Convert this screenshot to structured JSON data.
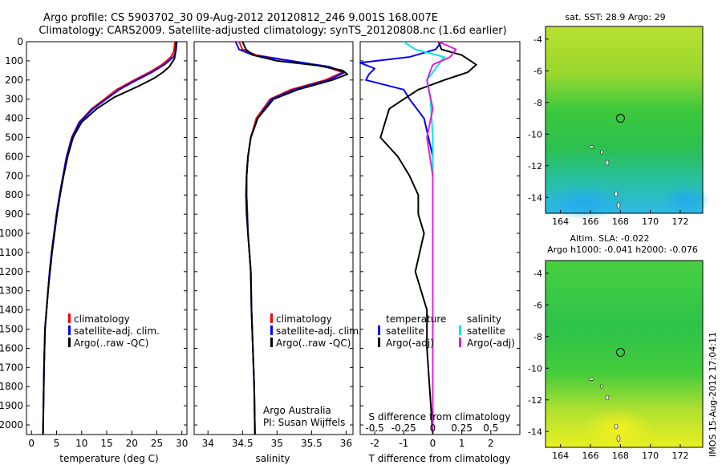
{
  "header": {
    "line1": "Argo profile: CS 5903702_30 09-Aug-2012 20120812_246 9.001S 168.007E",
    "line2": "Climatology: CARS2009. Satellite-adjusted climatology: synTS_20120808.nc (1.6d earlier)"
  },
  "colors": {
    "climatology": "#ff0000",
    "satellite": "#0000ff",
    "argo": "#000000",
    "satellite_salinity": "#00e5e5",
    "argo_salinity": "#e020e0"
  },
  "depth_ticks": [
    "0",
    "100",
    "200",
    "300",
    "400",
    "500",
    "600",
    "700",
    "800",
    "900",
    "1000",
    "1100",
    "1200",
    "1300",
    "1400",
    "1500",
    "1600",
    "1700",
    "1800",
    "1900",
    "2000"
  ],
  "chart_data": [
    {
      "type": "line",
      "id": "temperature",
      "xlabel": "temperature (deg C)",
      "xlim": [
        -1,
        31
      ],
      "ylim": [
        2050,
        0
      ],
      "xticks": [
        "0",
        "5",
        "10",
        "15",
        "20",
        "25",
        "30"
      ],
      "xtick_values": [
        0,
        5,
        10,
        15,
        20,
        25,
        30
      ],
      "legend": [
        "climatology",
        "satellite-adj. clim.",
        "Argo(..raw -QC)"
      ],
      "series": [
        {
          "name": "climatology",
          "x": [
            28.6,
            28.4,
            27.8,
            26.0,
            23.5,
            20.5,
            17.0,
            12.0,
            9.5,
            8.0,
            7.0,
            6.3,
            5.6,
            5.0,
            4.5,
            4.0,
            3.6,
            3.3,
            3.0,
            2.7,
            2.5,
            2.3
          ],
          "y": [
            0,
            50,
            80,
            120,
            160,
            200,
            250,
            350,
            420,
            500,
            600,
            700,
            800,
            900,
            1000,
            1100,
            1200,
            1300,
            1400,
            1500,
            1700,
            2050
          ]
        },
        {
          "name": "satellite-adj. clim.",
          "x": [
            29.0,
            28.8,
            28.3,
            26.5,
            24.0,
            21.0,
            17.5,
            12.3,
            9.6,
            8.1,
            7.0,
            6.3,
            5.6,
            5.0,
            4.5,
            4.0,
            3.6,
            3.3,
            3.0,
            2.7,
            2.5,
            2.3
          ],
          "y": [
            0,
            50,
            80,
            120,
            160,
            200,
            250,
            350,
            420,
            500,
            600,
            700,
            800,
            900,
            1000,
            1100,
            1200,
            1300,
            1400,
            1500,
            1700,
            2050
          ]
        },
        {
          "name": "Argo(..raw -QC)",
          "x": [
            28.8,
            28.7,
            28.5,
            27.5,
            26.2,
            24.5,
            21.5,
            16.5,
            13.0,
            10.0,
            8.3,
            7.2,
            6.4,
            5.7,
            5.1,
            4.6,
            4.1,
            3.7,
            3.3,
            3.0,
            2.7,
            2.5,
            2.3
          ],
          "y": [
            0,
            60,
            90,
            130,
            160,
            190,
            230,
            290,
            350,
            420,
            500,
            600,
            700,
            800,
            900,
            1000,
            1100,
            1200,
            1300,
            1400,
            1500,
            1700,
            2050
          ]
        }
      ]
    },
    {
      "type": "line",
      "id": "salinity",
      "xlabel": "salinity",
      "xlim": [
        33.8,
        36.1
      ],
      "ylim": [
        2050,
        0
      ],
      "xticks": [
        "34",
        "34.5",
        "35",
        "35.5",
        "36"
      ],
      "xtick_values": [
        34,
        34.5,
        35,
        35.5,
        36
      ],
      "legend": [
        "climatology",
        "satellite-adj. clim.",
        "Argo(..raw -QC)"
      ],
      "series": [
        {
          "name": "climatology",
          "x": [
            34.45,
            34.5,
            34.7,
            35.2,
            35.7,
            35.95,
            35.7,
            35.2,
            34.9,
            34.7,
            34.62,
            34.58,
            34.56,
            34.56,
            34.57,
            34.58,
            34.6,
            34.62,
            34.63,
            34.65,
            34.67,
            34.68
          ],
          "y": [
            0,
            40,
            70,
            100,
            130,
            160,
            200,
            250,
            300,
            400,
            500,
            600,
            700,
            800,
            900,
            1000,
            1100,
            1200,
            1400,
            1600,
            1800,
            2050
          ]
        },
        {
          "name": "satellite-adj. clim.",
          "x": [
            34.4,
            34.45,
            34.65,
            35.2,
            35.75,
            35.98,
            35.75,
            35.25,
            34.92,
            34.72,
            34.62,
            34.58,
            34.56,
            34.56,
            34.57,
            34.58,
            34.6,
            34.62,
            34.63,
            34.65,
            34.67,
            34.68
          ],
          "y": [
            0,
            40,
            70,
            100,
            130,
            160,
            200,
            250,
            300,
            400,
            500,
            600,
            700,
            800,
            900,
            1000,
            1100,
            1200,
            1400,
            1600,
            1800,
            2050
          ]
        },
        {
          "name": "Argo(..raw -QC)",
          "x": [
            34.5,
            34.55,
            34.65,
            35.0,
            35.6,
            35.95,
            36.02,
            35.8,
            35.3,
            34.95,
            34.72,
            34.62,
            34.58,
            34.56,
            34.55,
            34.56,
            34.58,
            34.6,
            34.62,
            34.63,
            34.65,
            34.67,
            34.68
          ],
          "y": [
            0,
            40,
            70,
            100,
            125,
            150,
            170,
            200,
            250,
            300,
            400,
            500,
            600,
            700,
            800,
            900,
            1000,
            1100,
            1200,
            1400,
            1600,
            1800,
            2050
          ]
        }
      ]
    },
    {
      "type": "line",
      "id": "difference",
      "xlabel_top": "S difference from climatology",
      "xlabel": "T difference from climatology",
      "xlim": [
        -2.5,
        3.0
      ],
      "ylim": [
        2050,
        0
      ],
      "xticks": [
        "-2",
        "-1",
        "0",
        "1",
        "2"
      ],
      "xtick_values": [
        -2,
        -1,
        0,
        1,
        2
      ],
      "xticks_top": [
        "-0.5",
        "-0.25",
        "0",
        "0.25",
        "0.5"
      ],
      "xticks_top_values": [
        -0.5,
        -0.25,
        0,
        0.25,
        0.5
      ],
      "legend_left_title": "temperature",
      "legend_right_title": "salinity",
      "legend_left": [
        "satellite",
        "Argo(-adj)"
      ],
      "legend_right": [
        "satellite",
        "Argo(-adj)"
      ],
      "series": [
        {
          "name": "temperature satellite",
          "x": [
            0.3,
            0.1,
            -0.8,
            -2.5,
            -2.0,
            -2.2,
            -2.3,
            -1.0,
            -0.8,
            -0.3,
            0.0,
            0.0,
            0.0,
            0.0,
            0.0
          ],
          "y": [
            0,
            40,
            80,
            110,
            140,
            170,
            200,
            250,
            300,
            400,
            600,
            800,
            1200,
            1600,
            2050
          ]
        },
        {
          "name": "temperature Argo(-adj)",
          "x": [
            0.2,
            0.3,
            1.0,
            1.5,
            1.2,
            0.8,
            0.4,
            -0.5,
            -1.0,
            -1.5,
            -1.8,
            -1.2,
            -0.8,
            -0.5,
            -0.5,
            -0.3,
            -0.6,
            -0.2,
            -0.2,
            0.0
          ],
          "y": [
            0,
            40,
            70,
            120,
            160,
            180,
            200,
            250,
            300,
            350,
            500,
            600,
            700,
            800,
            900,
            1000,
            1200,
            1400,
            1600,
            2050
          ]
        },
        {
          "name": "salinity satellite",
          "x": [
            -0.25,
            -0.15,
            0.1,
            0.05,
            -0.05,
            -0.02,
            0.0,
            0.0,
            0.0
          ],
          "y": [
            0,
            40,
            80,
            120,
            200,
            300,
            500,
            1000,
            2050
          ]
        },
        {
          "name": "salinity Argo(-adj)",
          "x": [
            0.05,
            0.2,
            0.15,
            0.0,
            -0.05,
            -0.03,
            0.0,
            -0.05,
            0.0,
            0.0
          ],
          "y": [
            0,
            40,
            80,
            120,
            200,
            260,
            350,
            500,
            700,
            2050
          ]
        }
      ]
    },
    {
      "type": "heatmap",
      "id": "sst-map",
      "title": "sat. SST: 28.9 Argo: 29",
      "xlim": [
        163,
        173.5
      ],
      "ylim": [
        -15,
        -3.2
      ],
      "xticks": [
        "164",
        "166",
        "168",
        "170",
        "172"
      ],
      "xtick_values": [
        164,
        166,
        168,
        170,
        172
      ],
      "yticks": [
        "-4",
        "-6",
        "-8",
        "-10",
        "-12",
        "-14"
      ],
      "ytick_values": [
        -4,
        -6,
        -8,
        -10,
        -12,
        -14
      ],
      "argo_position": [
        168.007,
        -9.001
      ]
    },
    {
      "type": "heatmap",
      "id": "sla-map",
      "title_line1": "Altim. SLA: -0.022",
      "title_line2": "Argo h1000: -0.041 h2000: -0.076",
      "xlim": [
        163,
        173.5
      ],
      "ylim": [
        -15,
        -3.2
      ],
      "xticks": [
        "164",
        "166",
        "168",
        "170",
        "172"
      ],
      "xtick_values": [
        164,
        166,
        168,
        170,
        172
      ],
      "yticks": [
        "-4",
        "-6",
        "-8",
        "-10",
        "-12",
        "-14"
      ],
      "ytick_values": [
        -4,
        -6,
        -8,
        -10,
        -12,
        -14
      ],
      "argo_position": [
        168.007,
        -9.001
      ]
    }
  ],
  "annotations": {
    "agency": "Argo Australia",
    "pi": "PI: Susan Wijffels",
    "stamp": "IMOS 15-Aug-2012 17:04:11"
  }
}
